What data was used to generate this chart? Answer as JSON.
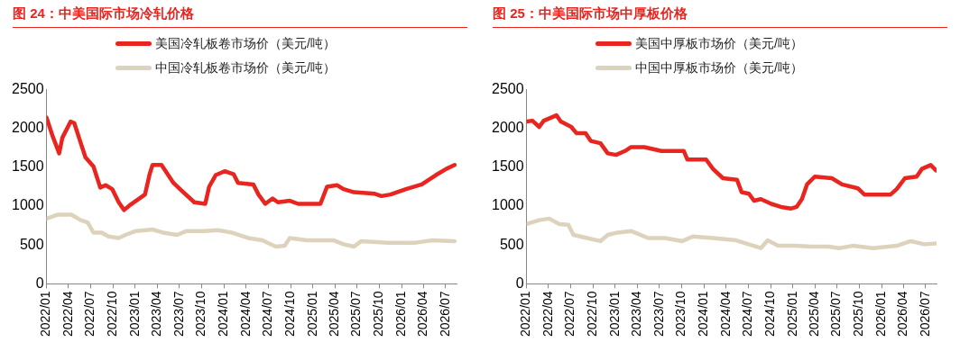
{
  "chart_data": [
    {
      "type": "line",
      "title": "图 24：中美国际市场冷轧价格",
      "legend": "top",
      "grid": false,
      "marker": "none",
      "line_style": "solid",
      "xlim": [
        "2022-01",
        "2026-08-15"
      ],
      "ylim": [
        0,
        2500
      ],
      "yticks": [
        0,
        500,
        1000,
        1500,
        2000,
        2500
      ],
      "xticks": [
        {
          "value": "2022-01",
          "label": "2022/01"
        },
        {
          "value": "2022-04",
          "label": "2022/04"
        },
        {
          "value": "2022-07",
          "label": "2022/07"
        },
        {
          "value": "2022-10",
          "label": "2022/10"
        },
        {
          "value": "2023-01",
          "label": "2023/01"
        },
        {
          "value": "2023-04",
          "label": "2023/04"
        },
        {
          "value": "2023-07",
          "label": "2023/07"
        },
        {
          "value": "2023-10",
          "label": "2023/10"
        },
        {
          "value": "2024-01",
          "label": "2024/01"
        },
        {
          "value": "2024-04",
          "label": "2024/04"
        },
        {
          "value": "2024-07",
          "label": "2024/07"
        },
        {
          "value": "2024-10",
          "label": "2024/10"
        },
        {
          "value": "2025-01",
          "label": "2025/01"
        },
        {
          "value": "2025-04",
          "label": "2025/04"
        },
        {
          "value": "2025-07",
          "label": "2025/07"
        },
        {
          "value": "2025-10",
          "label": "2025/10"
        },
        {
          "value": "2026-01",
          "label": "2026/01"
        },
        {
          "value": "2026-04",
          "label": "2026/04"
        },
        {
          "value": "2026-07",
          "label": "2026/07"
        }
      ],
      "series": [
        {
          "name": "美国冷轧板卷市场价（美元/吨）",
          "color": "#e8251f",
          "x": [
            "2022-01-01",
            "2022-01-25",
            "2022-02-22",
            "2022-03-07",
            "2022-04-10",
            "2022-04-25",
            "2022-05-22",
            "2022-06-10",
            "2022-07-13",
            "2022-08-10",
            "2022-09-01",
            "2022-09-28",
            "2022-10-25",
            "2022-11-16",
            "2022-12-13",
            "2023-02-10",
            "2023-03-01",
            "2023-03-13",
            "2023-04-19",
            "2023-06-07",
            "2023-07-04",
            "2023-09-01",
            "2023-10-16",
            "2023-11-01",
            "2023-11-28",
            "2024-01-04",
            "2024-02-10",
            "2024-02-28",
            "2024-05-01",
            "2024-05-22",
            "2024-06-19",
            "2024-07-19",
            "2024-08-10",
            "2024-09-28",
            "2024-11-01",
            "2025-02-01",
            "2025-02-28",
            "2025-04-10",
            "2025-05-07",
            "2025-06-19",
            "2025-09-13",
            "2025-10-10",
            "2025-11-16",
            "2026-01-19",
            "2026-03-25",
            "2026-05-22",
            "2026-07-04",
            "2026-08-07"
          ],
          "values": [
            2140,
            1910,
            1680,
            1880,
            2090,
            2070,
            1810,
            1630,
            1510,
            1240,
            1270,
            1220,
            1050,
            950,
            1020,
            1150,
            1410,
            1530,
            1530,
            1300,
            1220,
            1050,
            1030,
            1250,
            1400,
            1450,
            1410,
            1300,
            1280,
            1150,
            1030,
            1100,
            1050,
            1070,
            1030,
            1030,
            1250,
            1270,
            1220,
            1180,
            1160,
            1130,
            1150,
            1220,
            1280,
            1400,
            1480,
            1530
          ]
        },
        {
          "name": "中国冷轧板卷市场价（美元/吨）",
          "color": "#ddd3bd",
          "x": [
            "2022-01-01",
            "2022-02-15",
            "2022-04-13",
            "2022-05-22",
            "2022-06-19",
            "2022-07-13",
            "2022-08-16",
            "2022-09-13",
            "2022-10-25",
            "2022-11-22",
            "2023-01-04",
            "2023-03-13",
            "2023-04-25",
            "2023-06-22",
            "2023-08-01",
            "2023-10-10",
            "2023-12-07",
            "2024-02-01",
            "2024-04-10",
            "2024-06-07",
            "2024-08-01",
            "2024-09-07",
            "2024-09-28",
            "2024-12-07",
            "2025-03-28",
            "2025-05-07",
            "2025-06-19",
            "2025-07-19",
            "2025-11-07",
            "2026-02-28",
            "2026-05-07",
            "2026-08-07"
          ],
          "values": [
            840,
            890,
            890,
            820,
            790,
            660,
            660,
            610,
            590,
            630,
            680,
            700,
            660,
            630,
            680,
            680,
            690,
            660,
            590,
            560,
            480,
            490,
            590,
            560,
            560,
            510,
            480,
            550,
            530,
            530,
            560,
            550
          ]
        }
      ]
    },
    {
      "type": "line",
      "title": "图 25：中美国际市场中厚板价格",
      "legend": "top",
      "grid": false,
      "marker": "none",
      "line_style": "solid",
      "xlim": [
        "2022-01",
        "2026-08-15"
      ],
      "ylim": [
        0,
        2500
      ],
      "yticks": [
        0,
        500,
        1000,
        1500,
        2000,
        2500
      ],
      "xticks": [
        {
          "value": "2022-01",
          "label": "2022/01"
        },
        {
          "value": "2022-04",
          "label": "2022/04"
        },
        {
          "value": "2022-07",
          "label": "2022/07"
        },
        {
          "value": "2022-10",
          "label": "2022/10"
        },
        {
          "value": "2023-01",
          "label": "2023/01"
        },
        {
          "value": "2023-04",
          "label": "2023/04"
        },
        {
          "value": "2023-07",
          "label": "2023/07"
        },
        {
          "value": "2023-10",
          "label": "2023/10"
        },
        {
          "value": "2024-01",
          "label": "2024/01"
        },
        {
          "value": "2024-04",
          "label": "2024/04"
        },
        {
          "value": "2024-07",
          "label": "2024/07"
        },
        {
          "value": "2024-10",
          "label": "2024/10"
        },
        {
          "value": "2025-01",
          "label": "2025/01"
        },
        {
          "value": "2025-04",
          "label": "2025/04"
        },
        {
          "value": "2025-07",
          "label": "2025/07"
        },
        {
          "value": "2025-10",
          "label": "2025/10"
        },
        {
          "value": "2026-01",
          "label": "2026/01"
        },
        {
          "value": "2026-04",
          "label": "2026/04"
        },
        {
          "value": "2026-07",
          "label": "2026/07"
        }
      ],
      "series": [
        {
          "name": "美国中厚板市场价（美元/吨）",
          "color": "#e8251f",
          "x": [
            "2022-01-01",
            "2022-01-25",
            "2022-02-22",
            "2022-03-13",
            "2022-04-19",
            "2022-05-04",
            "2022-05-22",
            "2022-07-04",
            "2022-07-25",
            "2022-09-01",
            "2022-09-22",
            "2022-11-01",
            "2022-12-01",
            "2023-01-04",
            "2023-02-10",
            "2023-03-07",
            "2023-05-01",
            "2023-07-10",
            "2023-10-10",
            "2023-10-25",
            "2024-01-10",
            "2024-02-07",
            "2024-03-19",
            "2024-05-16",
            "2024-06-04",
            "2024-07-04",
            "2024-07-25",
            "2024-08-22",
            "2024-10-04",
            "2024-11-13",
            "2024-12-25",
            "2025-01-16",
            "2025-02-07",
            "2025-02-28",
            "2025-04-01",
            "2025-06-10",
            "2025-07-22",
            "2025-09-25",
            "2025-10-22",
            "2026-02-07",
            "2026-03-04",
            "2026-04-07",
            "2026-05-25",
            "2026-06-16",
            "2026-07-22",
            "2026-08-13"
          ],
          "values": [
            2090,
            2100,
            2020,
            2100,
            2150,
            2170,
            2090,
            2020,
            1940,
            1940,
            1840,
            1810,
            1680,
            1660,
            1710,
            1760,
            1760,
            1710,
            1710,
            1600,
            1600,
            1480,
            1360,
            1340,
            1180,
            1160,
            1070,
            1090,
            1030,
            990,
            970,
            990,
            1090,
            1280,
            1380,
            1360,
            1280,
            1230,
            1150,
            1150,
            1220,
            1360,
            1380,
            1480,
            1530,
            1460
          ]
        },
        {
          "name": "中国中厚板市场价（美元/吨）",
          "color": "#ddd3bd",
          "x": [
            "2022-01-01",
            "2022-02-22",
            "2022-04-04",
            "2022-05-16",
            "2022-06-22",
            "2022-07-13",
            "2022-09-07",
            "2022-11-01",
            "2022-12-01",
            "2023-01-10",
            "2023-03-07",
            "2023-05-16",
            "2023-07-25",
            "2023-10-04",
            "2023-11-16",
            "2024-02-07",
            "2024-05-13",
            "2024-08-22",
            "2024-09-19",
            "2024-11-01",
            "2025-01-10",
            "2025-03-19",
            "2025-05-28",
            "2025-07-10",
            "2025-09-04",
            "2025-11-28",
            "2026-03-04",
            "2026-05-01",
            "2026-06-25",
            "2026-08-13"
          ],
          "values": [
            770,
            820,
            840,
            770,
            760,
            630,
            590,
            550,
            630,
            660,
            680,
            590,
            590,
            550,
            610,
            590,
            560,
            460,
            560,
            490,
            490,
            480,
            480,
            460,
            490,
            460,
            490,
            550,
            510,
            520
          ]
        }
      ]
    }
  ]
}
